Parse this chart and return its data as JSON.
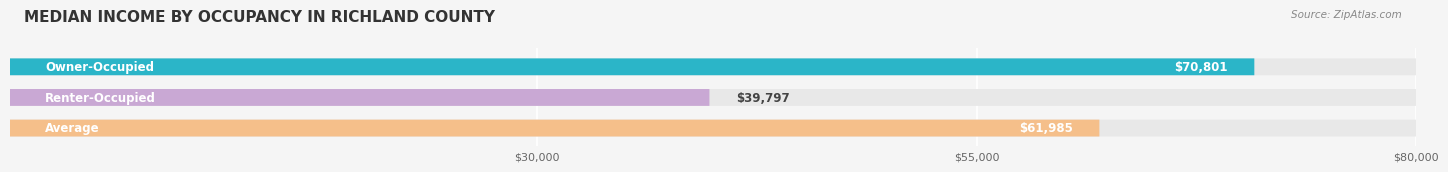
{
  "title": "MEDIAN INCOME BY OCCUPANCY IN RICHLAND COUNTY",
  "source": "Source: ZipAtlas.com",
  "categories": [
    "Owner-Occupied",
    "Renter-Occupied",
    "Average"
  ],
  "values": [
    70801,
    39797,
    61985
  ],
  "bar_colors": [
    "#2bb5c8",
    "#c9a8d4",
    "#f5bf8a"
  ],
  "bar_edge_colors": [
    "#2bb5c8",
    "#c9a8d4",
    "#f5bf8a"
  ],
  "value_labels": [
    "$70,801",
    "$39,797",
    "$61,985"
  ],
  "xlim": [
    0,
    80000
  ],
  "xticks": [
    30000,
    55000,
    80000
  ],
  "xticklabels": [
    "$30,000",
    "$55,000",
    "$80,000"
  ],
  "title_fontsize": 11,
  "label_fontsize": 8.5,
  "value_fontsize": 8.5,
  "bar_height": 0.55,
  "background_color": "#f5f5f5",
  "bar_background_color": "#e8e8e8"
}
